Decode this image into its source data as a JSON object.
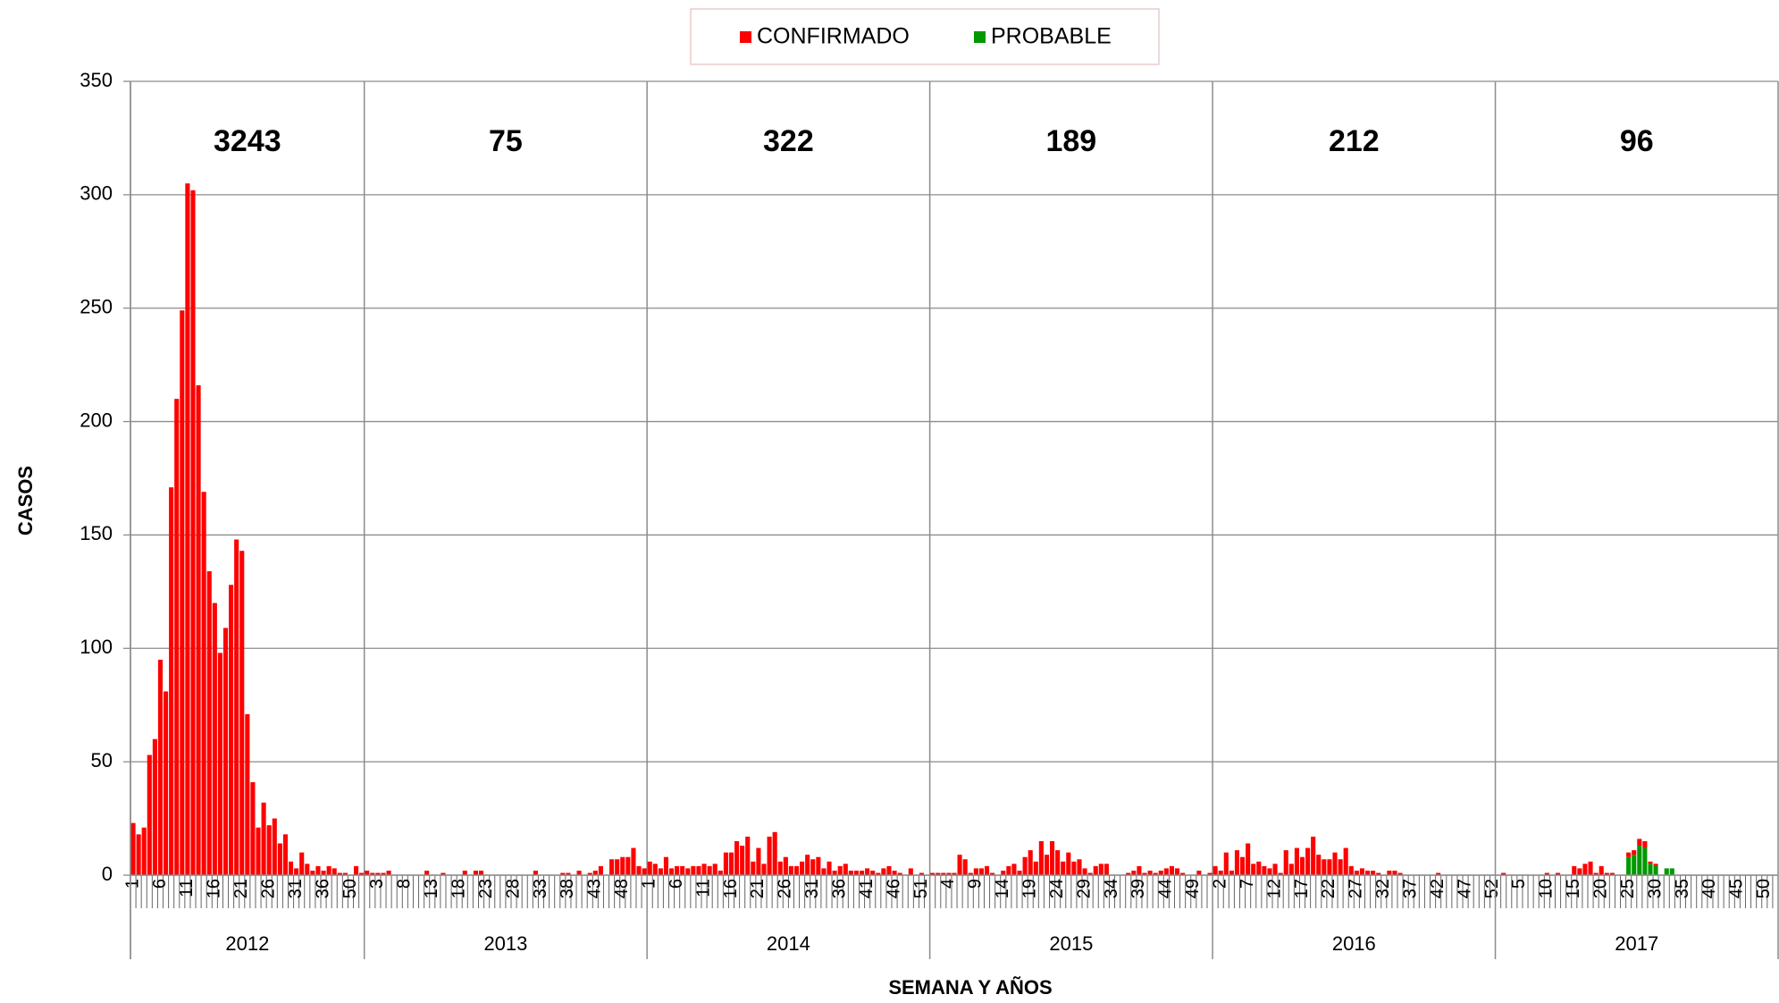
{
  "chart_data": {
    "type": "bar",
    "stacked": true,
    "legend": "top",
    "grid": true,
    "y_label": "CASOS",
    "x_label": "SEMANA Y AÑOS",
    "ylim": [
      0,
      350
    ],
    "yticks": [
      0,
      50,
      100,
      150,
      200,
      250,
      300,
      350
    ],
    "groups": [
      {
        "label": "2012",
        "total": 3243,
        "categories": [
          1,
          null,
          null,
          null,
          null,
          6,
          null,
          null,
          null,
          null,
          11,
          null,
          null,
          null,
          null,
          16,
          null,
          null,
          null,
          null,
          21,
          null,
          null,
          null,
          null,
          26,
          null,
          null,
          null,
          null,
          31,
          null,
          null,
          null,
          null,
          36,
          null,
          null,
          null,
          null,
          50,
          null,
          null
        ]
      },
      {
        "label": "2013",
        "total": 75,
        "categories": [
          null,
          null,
          3,
          null,
          null,
          null,
          null,
          8,
          null,
          null,
          null,
          null,
          13,
          null,
          null,
          null,
          null,
          18,
          null,
          null,
          null,
          null,
          23,
          null,
          null,
          null,
          null,
          28,
          null,
          null,
          null,
          null,
          33,
          null,
          null,
          null,
          null,
          38,
          null,
          null,
          null,
          null,
          43,
          null,
          null,
          null,
          null,
          48,
          null,
          null,
          null,
          null
        ]
      },
      {
        "label": "2014",
        "total": 322,
        "categories": [
          1,
          null,
          null,
          null,
          null,
          6,
          null,
          null,
          null,
          null,
          11,
          null,
          null,
          null,
          null,
          16,
          null,
          null,
          null,
          null,
          21,
          null,
          null,
          null,
          null,
          26,
          null,
          null,
          null,
          null,
          31,
          null,
          null,
          null,
          null,
          36,
          null,
          null,
          null,
          null,
          41,
          null,
          null,
          null,
          null,
          46,
          null,
          null,
          null,
          null,
          51,
          null
        ]
      },
      {
        "label": "2015",
        "total": 189,
        "categories": [
          null,
          null,
          null,
          4,
          null,
          null,
          null,
          null,
          9,
          null,
          null,
          null,
          null,
          14,
          null,
          null,
          null,
          null,
          19,
          null,
          null,
          null,
          null,
          24,
          null,
          null,
          null,
          null,
          29,
          null,
          null,
          null,
          null,
          34,
          null,
          null,
          null,
          null,
          39,
          null,
          null,
          null,
          null,
          44,
          null,
          null,
          null,
          null,
          49,
          null,
          null,
          null
        ]
      },
      {
        "label": "2016",
        "total": 212,
        "categories": [
          null,
          2,
          null,
          null,
          null,
          null,
          7,
          null,
          null,
          null,
          null,
          12,
          null,
          null,
          null,
          null,
          17,
          null,
          null,
          null,
          null,
          22,
          null,
          null,
          null,
          null,
          27,
          null,
          null,
          null,
          null,
          32,
          null,
          null,
          null,
          null,
          37,
          null,
          null,
          null,
          null,
          42,
          null,
          null,
          null,
          null,
          47,
          null,
          null,
          null,
          null,
          52
        ]
      },
      {
        "label": "2017",
        "total": 96,
        "categories": [
          null,
          null,
          null,
          null,
          5,
          null,
          null,
          null,
          null,
          10,
          null,
          null,
          null,
          null,
          15,
          null,
          null,
          null,
          null,
          20,
          null,
          null,
          null,
          null,
          25,
          null,
          null,
          null,
          null,
          30,
          null,
          null,
          null,
          null,
          35,
          null,
          null,
          null,
          null,
          40,
          null,
          null,
          null,
          null,
          45,
          null,
          null,
          null,
          null,
          50,
          null,
          null
        ]
      }
    ],
    "series": [
      {
        "name": "CONFIRMADO",
        "color": "#ff0000",
        "values": [
          23,
          18,
          21,
          53,
          60,
          95,
          81,
          171,
          210,
          249,
          305,
          302,
          216,
          169,
          134,
          120,
          98,
          109,
          128,
          148,
          143,
          71,
          41,
          21,
          32,
          22,
          25,
          14,
          18,
          6,
          3,
          10,
          5,
          2,
          4,
          2,
          4,
          3,
          1,
          1,
          0,
          4,
          1,
          2,
          1,
          1,
          1,
          2,
          0,
          0,
          0,
          0,
          0,
          0,
          2,
          0,
          0,
          1,
          0,
          0,
          0,
          2,
          0,
          2,
          2,
          0,
          0,
          0,
          0,
          0,
          0,
          0,
          0,
          0,
          2,
          0,
          0,
          0,
          0,
          1,
          1,
          0,
          2,
          0,
          1,
          2,
          4,
          0,
          7,
          7,
          8,
          8,
          12,
          4,
          3,
          6,
          5,
          3,
          8,
          3,
          4,
          4,
          3,
          4,
          4,
          5,
          4,
          5,
          2,
          10,
          10,
          15,
          13,
          17,
          6,
          12,
          5,
          17,
          19,
          6,
          8,
          4,
          4,
          6,
          9,
          7,
          8,
          3,
          6,
          2,
          4,
          5,
          2,
          2,
          2,
          3,
          2,
          1,
          3,
          4,
          2,
          1,
          0,
          3,
          0,
          1,
          0,
          1,
          1,
          1,
          1,
          1,
          9,
          7,
          1,
          3,
          3,
          4,
          1,
          0,
          2,
          4,
          5,
          2,
          8,
          11,
          6,
          15,
          9,
          15,
          11,
          6,
          10,
          6,
          7,
          3,
          1,
          4,
          5,
          5,
          0,
          0,
          0,
          1,
          2,
          4,
          1,
          2,
          1,
          2,
          3,
          4,
          3,
          1,
          0,
          0,
          2,
          0,
          1,
          4,
          2,
          10,
          2,
          11,
          8,
          14,
          5,
          6,
          4,
          3,
          5,
          1,
          11,
          5,
          12,
          8,
          12,
          17,
          9,
          7,
          7,
          10,
          7,
          12,
          4,
          2,
          3,
          2,
          2,
          1,
          0,
          2,
          2,
          1,
          0,
          0,
          0,
          0,
          0,
          0,
          1,
          0,
          0,
          0,
          0,
          0,
          0,
          0,
          0,
          0,
          0,
          0,
          1,
          0,
          0,
          0,
          0,
          0,
          0,
          0,
          1,
          0,
          1,
          0,
          0,
          4,
          3,
          5,
          6,
          1,
          4,
          1,
          1,
          0,
          0,
          2,
          2,
          3,
          3,
          1,
          1,
          0,
          0,
          0,
          0,
          0,
          0,
          0,
          0,
          0,
          0,
          0,
          0,
          0,
          0,
          0,
          0,
          0,
          0,
          0,
          0,
          0,
          0
        ]
      },
      {
        "name": "PROBABLE",
        "color": "#009900",
        "values": [
          0,
          0,
          0,
          0,
          0,
          0,
          0,
          0,
          0,
          0,
          0,
          0,
          0,
          0,
          0,
          0,
          0,
          0,
          0,
          0,
          0,
          0,
          0,
          0,
          0,
          0,
          0,
          0,
          0,
          0,
          0,
          0,
          0,
          0,
          0,
          0,
          0,
          0,
          0,
          0,
          0,
          0,
          0,
          0,
          0,
          0,
          0,
          0,
          0,
          0,
          0,
          0,
          0,
          0,
          0,
          0,
          0,
          0,
          0,
          0,
          0,
          0,
          0,
          0,
          0,
          0,
          0,
          0,
          0,
          0,
          0,
          0,
          0,
          0,
          0,
          0,
          0,
          0,
          0,
          0,
          0,
          0,
          0,
          0,
          0,
          0,
          0,
          0,
          0,
          0,
          0,
          0,
          0,
          0,
          0,
          0,
          0,
          0,
          0,
          0,
          0,
          0,
          0,
          0,
          0,
          0,
          0,
          0,
          0,
          0,
          0,
          0,
          0,
          0,
          0,
          0,
          0,
          0,
          0,
          0,
          0,
          0,
          0,
          0,
          0,
          0,
          0,
          0,
          0,
          0,
          0,
          0,
          0,
          0,
          0,
          0,
          0,
          0,
          0,
          0,
          0,
          0,
          0,
          0,
          0,
          0,
          0,
          0,
          0,
          0,
          0,
          0,
          0,
          0,
          0,
          0,
          0,
          0,
          0,
          0,
          0,
          0,
          0,
          0,
          0,
          0,
          0,
          0,
          0,
          0,
          0,
          0,
          0,
          0,
          0,
          0,
          0,
          0,
          0,
          0,
          0,
          0,
          0,
          0,
          0,
          0,
          0,
          0,
          0,
          0,
          0,
          0,
          0,
          0,
          0,
          0,
          0,
          0,
          0,
          0,
          0,
          0,
          0,
          0,
          0,
          0,
          0,
          0,
          0,
          0,
          0,
          0,
          0,
          0,
          0,
          0,
          0,
          0,
          0,
          0,
          0,
          0,
          0,
          0,
          0,
          0,
          0,
          0,
          0,
          0,
          0,
          0,
          0,
          0,
          0,
          0,
          0,
          0,
          0,
          0,
          0,
          0,
          0,
          0,
          0,
          0,
          0,
          0,
          0,
          0,
          0,
          0,
          0,
          0,
          0,
          0,
          0,
          0,
          0,
          0,
          0,
          0,
          0,
          0,
          0,
          0,
          0,
          0,
          0,
          0,
          0,
          0,
          0,
          0,
          0,
          8,
          9,
          13,
          12,
          5,
          4,
          0,
          3,
          3,
          0,
          0,
          0,
          0,
          0,
          0,
          0,
          0,
          0,
          0,
          0,
          0,
          0,
          0,
          0,
          0,
          0,
          0,
          0
        ]
      }
    ]
  }
}
